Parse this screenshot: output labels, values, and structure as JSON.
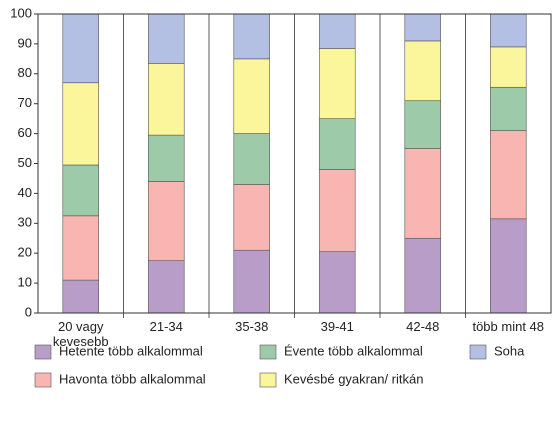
{
  "chart_data": {
    "type": "stacked_bar",
    "categories": [
      "20 vagy kevesebb",
      "21-34",
      "35-38",
      "39-41",
      "42-48",
      "több mint 48"
    ],
    "series": [
      {
        "name": "Hetente több alkalommal",
        "color": "#b99dc9",
        "values": [
          11,
          17.5,
          21,
          20.5,
          25,
          31.5
        ]
      },
      {
        "name": "Havonta több alkalommal",
        "color": "#f8b5b1",
        "values": [
          21.5,
          26.5,
          22,
          27.5,
          30,
          29.5
        ]
      },
      {
        "name": "Évente több alkalommal",
        "color": "#9dcba9",
        "values": [
          17,
          15.5,
          17,
          17,
          16,
          14.5
        ]
      },
      {
        "name": "Kevésbé gyakran/ ritkán",
        "color": "#fbf59b",
        "values": [
          27.5,
          24,
          25,
          23.5,
          20,
          13.5
        ]
      },
      {
        "name": "Soha",
        "color": "#b4c0e3",
        "values": [
          23,
          16.5,
          15,
          11.5,
          9,
          11
        ]
      }
    ],
    "ylim": [
      0,
      100
    ],
    "yticks": [
      0,
      10,
      20,
      30,
      40,
      50,
      60,
      70,
      80,
      90,
      100
    ]
  }
}
